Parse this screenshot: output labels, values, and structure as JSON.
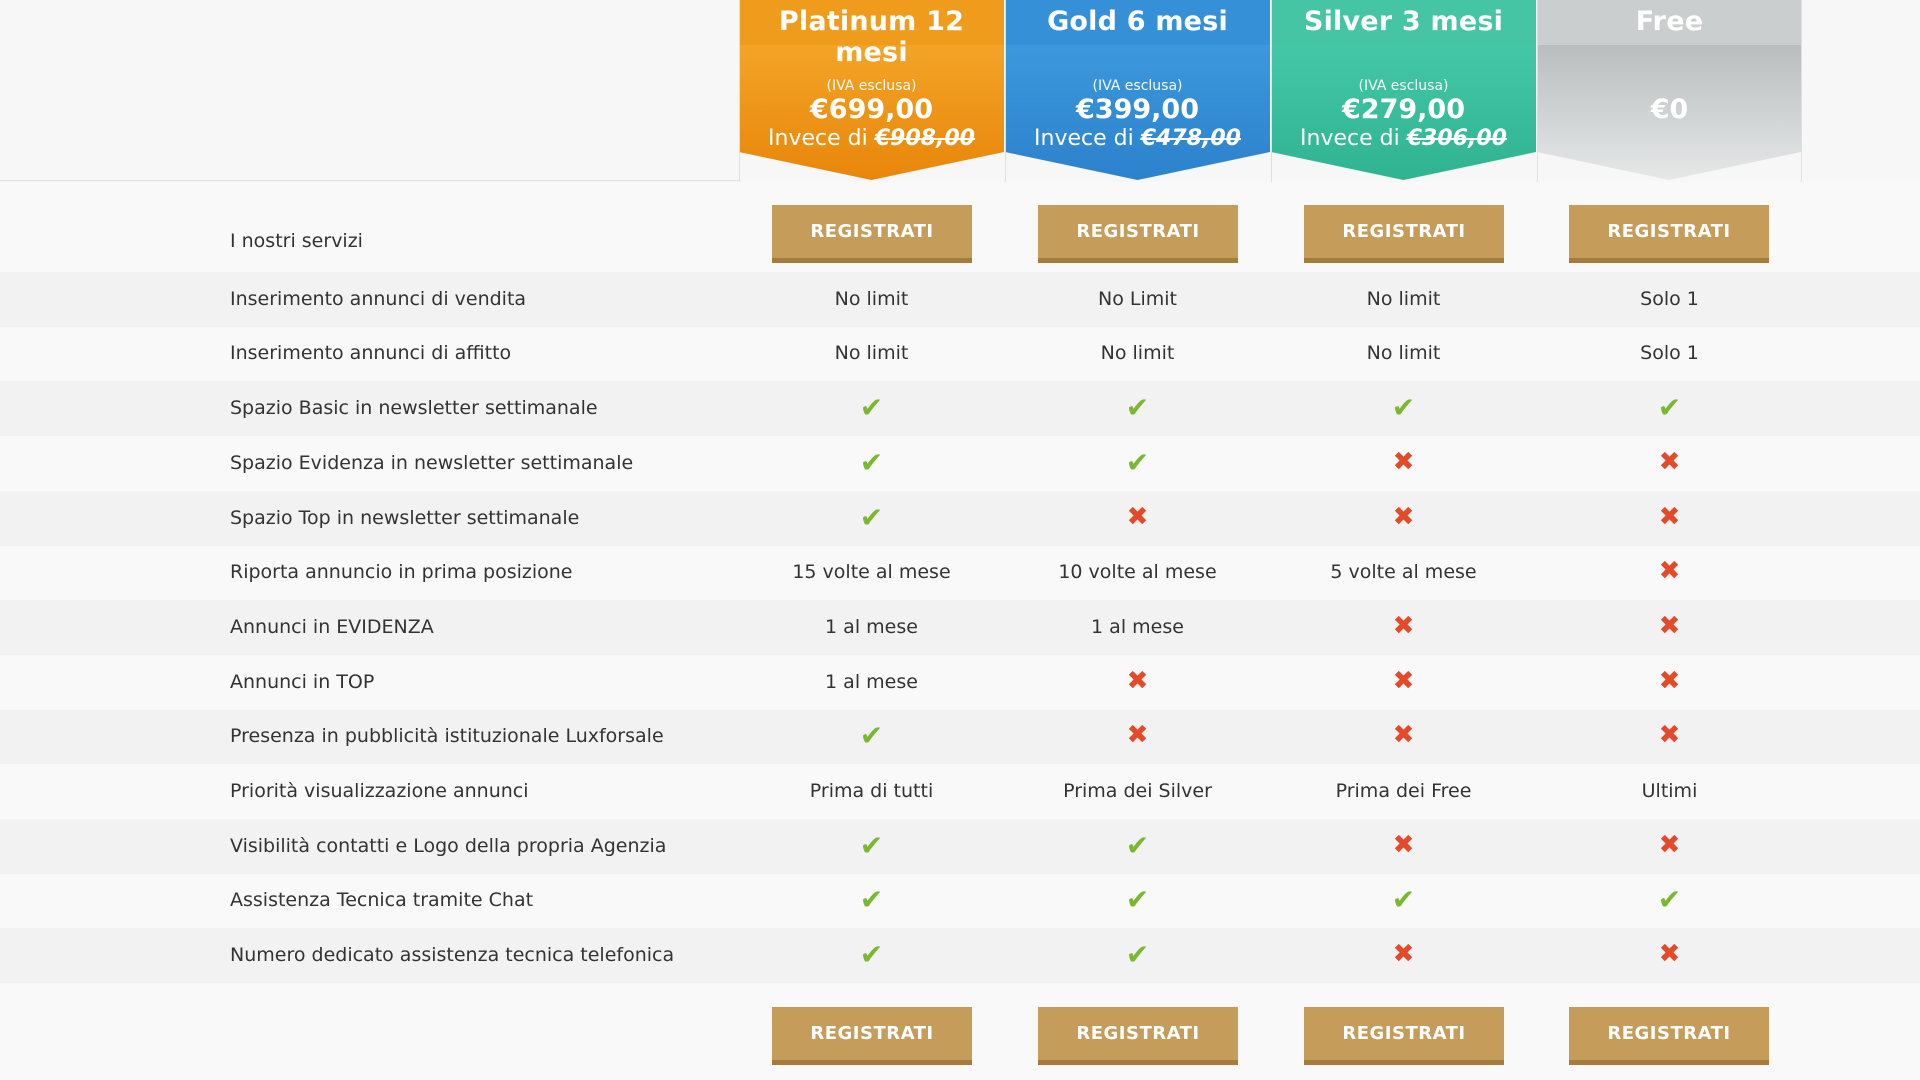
{
  "plans": [
    {
      "name": "Platinum 12 mesi",
      "iva": "(IVA esclusa)",
      "price": "€699,00",
      "was_prefix": "Invece di ",
      "was": "€908,00",
      "color": "#f0a01e"
    },
    {
      "name": "Gold 6 mesi",
      "iva": "(IVA esclusa)",
      "price": "€399,00",
      "was_prefix": "Invece di ",
      "was": "€478,00",
      "color": "#3a93d8"
    },
    {
      "name": "Silver 3 mesi",
      "iva": "(IVA esclusa)",
      "price": "€279,00",
      "was_prefix": "Invece di ",
      "was": "€306,00",
      "color": "#3fc2a0"
    },
    {
      "name": "Free",
      "iva": "",
      "price": "€0",
      "was_prefix": "",
      "was": "",
      "color": "#c9cccc"
    }
  ],
  "services_label": "I nostri servizi",
  "register_label": "REGISTRATI",
  "features": [
    {
      "label": "Inserimento annunci di vendita",
      "values": [
        "No limit",
        "No Limit",
        "No limit",
        "Solo 1"
      ]
    },
    {
      "label": "Inserimento annunci di affitto",
      "values": [
        "No limit",
        "No limit",
        "No limit",
        "Solo 1"
      ]
    },
    {
      "label": "Spazio Basic in newsletter settimanale",
      "values": [
        "check",
        "check",
        "check",
        "check"
      ]
    },
    {
      "label": "Spazio Evidenza in newsletter settimanale",
      "values": [
        "check",
        "check",
        "cross",
        "cross"
      ]
    },
    {
      "label": "Spazio Top in newsletter settimanale",
      "values": [
        "check",
        "cross",
        "cross",
        "cross"
      ]
    },
    {
      "label": "Riporta annuncio in prima posizione",
      "values": [
        "15 volte al mese",
        "10 volte al mese",
        "5 volte al mese",
        "cross"
      ]
    },
    {
      "label": "Annunci in EVIDENZA",
      "values": [
        "1 al mese",
        "1 al mese",
        "cross",
        "cross"
      ]
    },
    {
      "label": "Annunci in TOP",
      "values": [
        "1 al mese",
        "cross",
        "cross",
        "cross"
      ]
    },
    {
      "label": "Presenza in pubblicità istituzionale Luxforsale",
      "values": [
        "check",
        "cross",
        "cross",
        "cross"
      ]
    },
    {
      "label": "Priorità visualizzazione annunci",
      "values": [
        "Prima di tutti",
        "Prima dei Silver",
        "Prima dei Free",
        "Ultimi"
      ]
    },
    {
      "label": "Visibilità contatti e Logo della propria Agenzia",
      "values": [
        "check",
        "check",
        "cross",
        "cross"
      ]
    },
    {
      "label": "Assistenza Tecnica tramite Chat",
      "values": [
        "check",
        "check",
        "check",
        "check"
      ]
    },
    {
      "label": "Numero dedicato assistenza tecnica telefonica",
      "values": [
        "check",
        "check",
        "cross",
        "cross"
      ]
    }
  ],
  "icons": {
    "check": "checkmark-icon",
    "cross": "cross-icon"
  },
  "colors": {
    "button": "#c69c5b",
    "check": "#7bb832",
    "cross": "#e24a2a"
  }
}
